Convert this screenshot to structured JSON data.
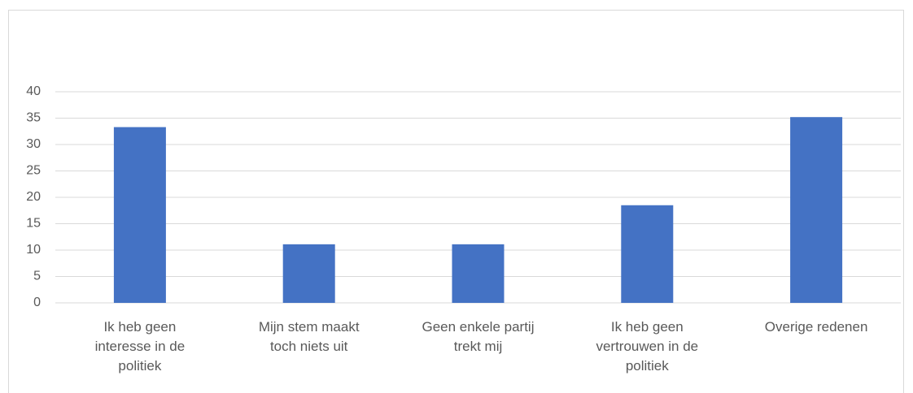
{
  "chart_data": {
    "type": "bar",
    "categories": [
      "Ik heb geen interesse in de politiek",
      "Mijn stem maakt toch niets uit",
      "Geen enkele partij trekt mij",
      "Ik heb geen vertrouwen in de politiek",
      "Overige redenen"
    ],
    "values": [
      33.3,
      11.1,
      11.1,
      18.5,
      35.2
    ],
    "color": "#4472c4",
    "ylim": [
      0,
      40
    ],
    "yticks": [
      0,
      5,
      10,
      15,
      20,
      25,
      30,
      35,
      40
    ],
    "grid": true
  }
}
